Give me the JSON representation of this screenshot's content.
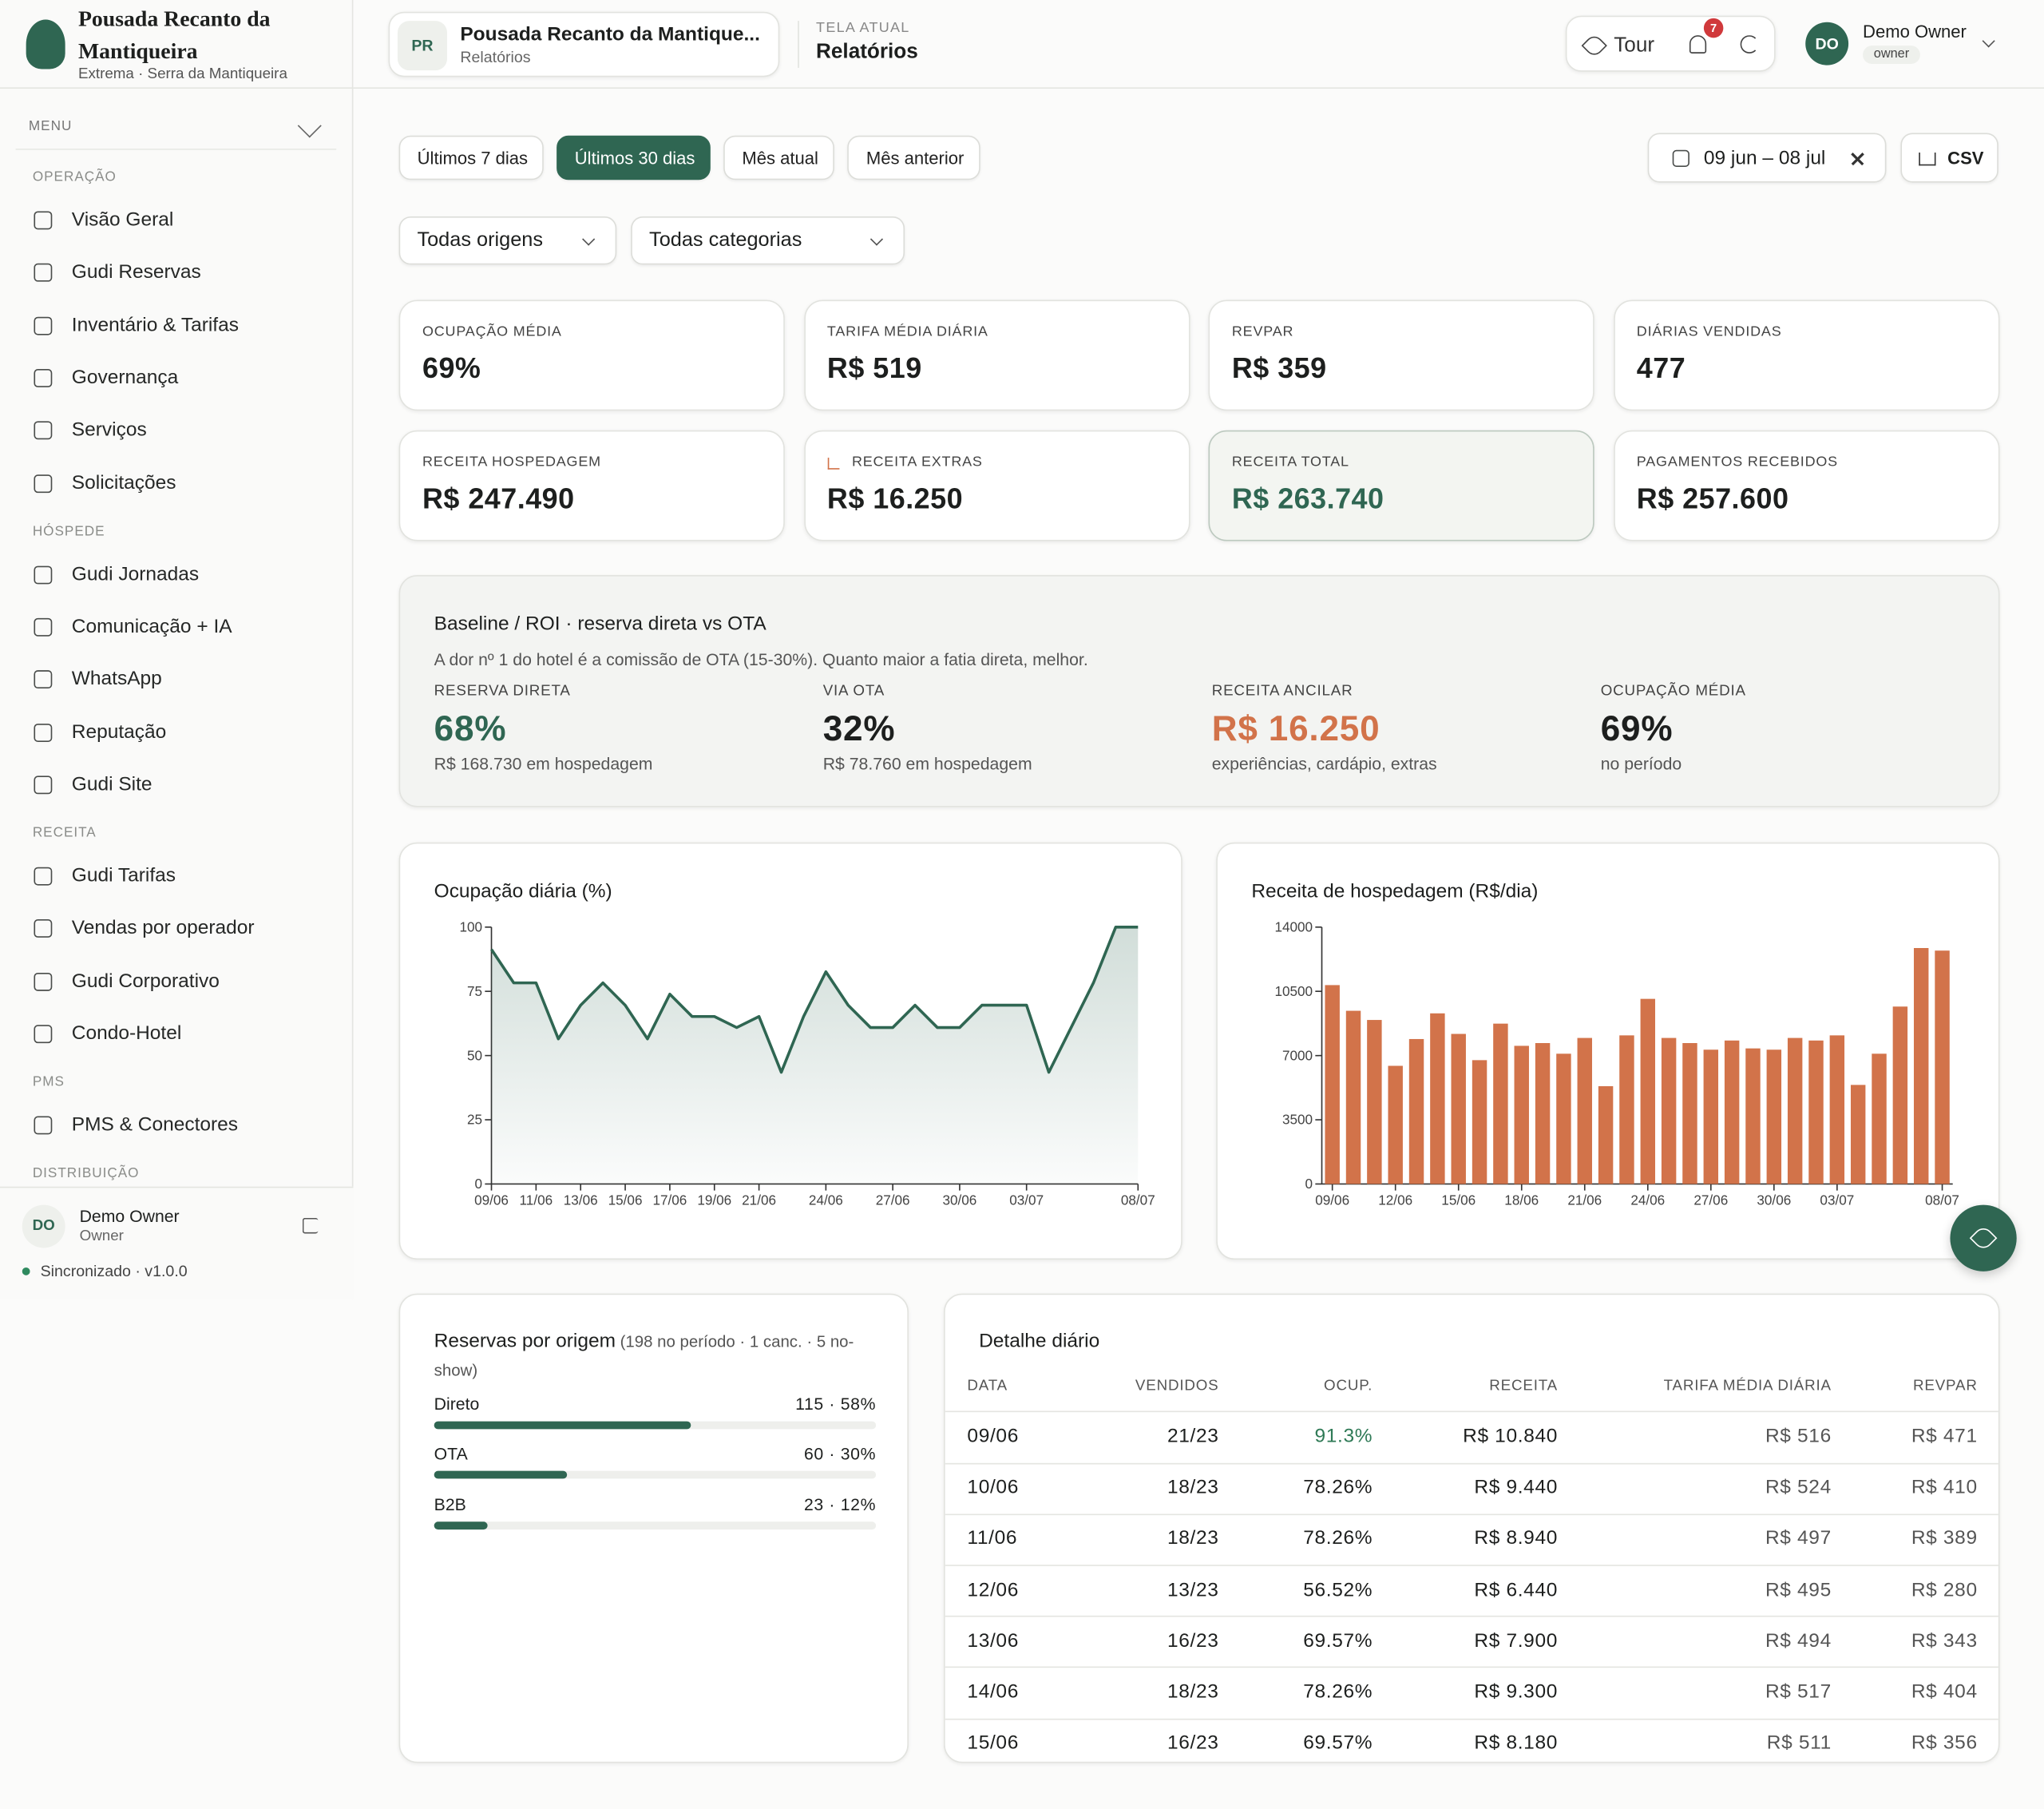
{
  "brand": {
    "name_line1": "Pousada Recanto da",
    "name_line2": "Mantiqueira",
    "location": "Extrema · Serra da Mantiqueira"
  },
  "sidebar": {
    "menu_label": "MENU",
    "sections": [
      {
        "title": "OPERAÇÃO",
        "items": [
          "Visão Geral",
          "Gudi Reservas",
          "Inventário & Tarifas",
          "Governança",
          "Serviços",
          "Solicitações"
        ]
      },
      {
        "title": "HÓSPEDE",
        "items": [
          "Gudi Jornadas",
          "Comunicação + IA",
          "WhatsApp",
          "Reputação",
          "Gudi Site"
        ]
      },
      {
        "title": "RECEITA",
        "items": [
          "Gudi Tarifas",
          "Vendas por operador",
          "Gudi Corporativo",
          "Condo-Hotel"
        ]
      },
      {
        "title": "PMS",
        "items": [
          "PMS & Conectores"
        ]
      },
      {
        "title": "DISTRIBUIÇÃO",
        "items": []
      }
    ],
    "user": {
      "initials": "DO",
      "name": "Demo Owner",
      "role": "Owner"
    },
    "status": "Sincronizado · v1.0.0"
  },
  "header": {
    "property_initials": "PR",
    "property_name": "Pousada Recanto da Mantique...",
    "property_sub": "Relatórios",
    "screen_label": "TELA ATUAL",
    "screen": "Relatórios",
    "tour": "Tour",
    "notifications": "7",
    "user_initials": "DO",
    "user_name": "Demo Owner",
    "user_role": "owner"
  },
  "filters": {
    "periods": [
      "Últimos 7 dias",
      "Últimos 30 dias",
      "Mês atual",
      "Mês anterior"
    ],
    "active_period": 1,
    "date_range": "09 jun – 08 jul",
    "export": "CSV",
    "origin": "Todas origens",
    "category": "Todas categorias"
  },
  "kpis": [
    {
      "label": "OCUPAÇÃO MÉDIA",
      "value": "69%"
    },
    {
      "label": "TARIFA MÉDIA DIÁRIA",
      "value": "R$ 519"
    },
    {
      "label": "REVPAR",
      "value": "R$ 359"
    },
    {
      "label": "DIÁRIAS VENDIDAS",
      "value": "477"
    },
    {
      "label": "RECEITA HOSPEDAGEM",
      "value": "R$ 247.490"
    },
    {
      "label": "RECEITA EXTRAS",
      "value": "R$ 16.250"
    },
    {
      "label": "RECEITA TOTAL",
      "value": "R$ 263.740"
    },
    {
      "label": "PAGAMENTOS RECEBIDOS",
      "value": "R$ 257.600"
    }
  ],
  "baseline": {
    "title": "Baseline / ROI · reserva direta vs OTA",
    "subtitle": "A dor nº 1 do hotel é a comissão de OTA (15-30%). Quanto maior a fatia direta, melhor.",
    "metrics": [
      {
        "label": "RESERVA DIRETA",
        "value": "68%",
        "note": "R$ 168.730 em hospedagem"
      },
      {
        "label": "VIA OTA",
        "value": "32%",
        "note": "R$ 78.760 em hospedagem"
      },
      {
        "label": "RECEITA ANCILAR",
        "value": "R$ 16.250",
        "note": "experiências, cardápio, extras"
      },
      {
        "label": "OCUPAÇÃO MÉDIA",
        "value": "69%",
        "note": "no período"
      }
    ]
  },
  "origins": {
    "title": "Reservas por origem",
    "note": "(198 no período · 1 canc. · 5 no-show)",
    "rows": [
      {
        "name": "Direto",
        "share": 58,
        "value_label": "115 · 58%"
      },
      {
        "name": "OTA",
        "share": 30,
        "value_label": "60 · 30%"
      },
      {
        "name": "B2B",
        "share": 12,
        "value_label": "23 · 12%"
      }
    ]
  },
  "table": {
    "title": "Detalhe diário",
    "columns": [
      "DATA",
      "VENDIDOS",
      "OCUP.",
      "RECEITA",
      "TARIFA MÉDIA DIÁRIA",
      "REVPAR"
    ],
    "rows": [
      [
        "09/06",
        "21/23",
        "91.3%",
        "R$ 10.840",
        "R$ 516",
        "R$ 471"
      ],
      [
        "10/06",
        "18/23",
        "78.26%",
        "R$ 9.440",
        "R$ 524",
        "R$ 410"
      ],
      [
        "11/06",
        "18/23",
        "78.26%",
        "R$ 8.940",
        "R$ 497",
        "R$ 389"
      ],
      [
        "12/06",
        "13/23",
        "56.52%",
        "R$ 6.440",
        "R$ 495",
        "R$ 280"
      ],
      [
        "13/06",
        "16/23",
        "69.57%",
        "R$ 7.900",
        "R$ 494",
        "R$ 343"
      ],
      [
        "14/06",
        "18/23",
        "78.26%",
        "R$ 9.300",
        "R$ 517",
        "R$ 404"
      ],
      [
        "15/06",
        "16/23",
        "69.57%",
        "R$ 8.180",
        "R$ 511",
        "R$ 356"
      ]
    ]
  },
  "chart_data": [
    {
      "type": "area",
      "title": "Ocupação diária (%)",
      "categories": [
        "09/06",
        null,
        "11/06",
        null,
        "13/06",
        null,
        "15/06",
        null,
        "17/06",
        null,
        "19/06",
        null,
        "21/06",
        null,
        null,
        "24/06",
        null,
        null,
        "27/06",
        null,
        null,
        "30/06",
        null,
        null,
        "03/07",
        null,
        null,
        null,
        null,
        "08/07"
      ],
      "values": [
        91.3,
        78.3,
        78.3,
        56.5,
        69.6,
        78.3,
        69.6,
        56.5,
        73.9,
        65.2,
        65.2,
        60.9,
        65.2,
        43.5,
        65.2,
        82.6,
        69.6,
        60.9,
        60.9,
        69.6,
        60.9,
        60.9,
        69.6,
        69.6,
        69.6,
        43.5,
        60.9,
        78.3,
        100,
        100
      ],
      "color": "#2f6652",
      "ylim": [
        0,
        100
      ],
      "yticks": [
        0,
        25,
        50,
        75,
        100
      ]
    },
    {
      "type": "bar",
      "title": "Receita de hospedagem (R$/dia)",
      "categories": [
        "09/06",
        null,
        null,
        "12/06",
        null,
        null,
        "15/06",
        null,
        null,
        "18/06",
        null,
        null,
        "21/06",
        null,
        null,
        "24/06",
        null,
        null,
        "27/06",
        null,
        null,
        "30/06",
        null,
        null,
        "03/07",
        null,
        null,
        null,
        null,
        "08/07"
      ],
      "values": [
        10840,
        9440,
        8940,
        6440,
        7900,
        9300,
        8180,
        6750,
        8740,
        7530,
        7680,
        7100,
        7960,
        5330,
        8100,
        10090,
        7960,
        7680,
        7320,
        7820,
        7390,
        7320,
        7960,
        7820,
        8100,
        5400,
        7100,
        9670,
        12860,
        12720
      ],
      "color": "#d2734a",
      "ylim": [
        0,
        14000
      ],
      "yticks": [
        0,
        3500,
        7000,
        10500,
        14000
      ]
    }
  ]
}
